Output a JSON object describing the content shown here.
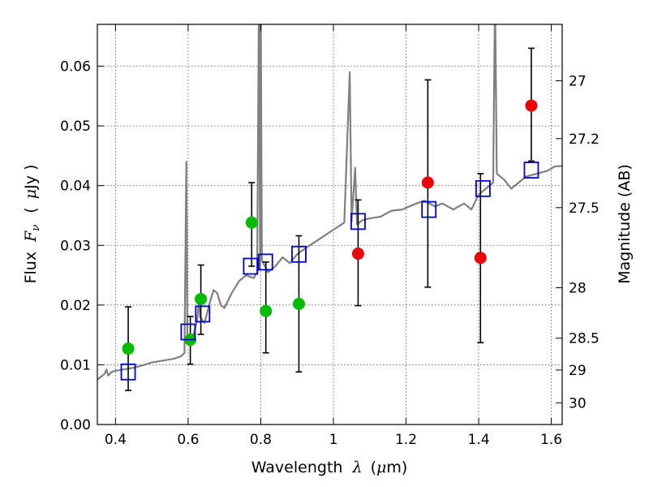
{
  "chart_data": {
    "type": "scatter",
    "xlabel": "Wavelength",
    "xlabel_symbol": "λ",
    "xlabel_unit_open": "(",
    "xlabel_unit_mu": "μ",
    "xlabel_unit_rest": "m)",
    "ylabel": "Flux",
    "ylabel_symbol_main": "F",
    "ylabel_symbol_sub": "ν",
    "ylabel_unit_open": "(",
    "ylabel_unit_mu": "μ",
    "ylabel_unit_rest": "Jy )",
    "y2label": "Magnitude (AB)",
    "xlim": [
      0.35,
      1.63
    ],
    "ylim": [
      0.0,
      0.067
    ],
    "x_ticks": [
      0.4,
      0.6,
      0.8,
      1.0,
      1.2,
      1.4,
      1.6
    ],
    "x_tick_labels": [
      "0.4",
      "0.6",
      "0.8",
      "1",
      "1.2",
      "1.4",
      "1.6"
    ],
    "y_ticks": [
      0.0,
      0.01,
      0.02,
      0.03,
      0.04,
      0.05,
      0.06
    ],
    "y_tick_labels": [
      "0.00",
      "0.01",
      "0.02",
      "0.03",
      "0.04",
      "0.05",
      "0.06"
    ],
    "y2_ticks": [
      27,
      27.2,
      27.5,
      28,
      28.5,
      29,
      30
    ],
    "y2_tick_labels": [
      "27",
      "27.2",
      "27.5",
      "28",
      "28.5",
      "29",
      "30"
    ],
    "grid": true,
    "colors": {
      "model": "#808080",
      "green": "#00bb00",
      "red": "#ee0000",
      "box": "#0000cc",
      "errorbar": "#000000"
    },
    "series": [
      {
        "marker": "circle",
        "color": "#00bb00",
        "points": [
          {
            "x": 0.435,
            "y": 0.0127
          },
          {
            "x": 0.606,
            "y": 0.0142
          },
          {
            "x": 0.635,
            "y": 0.021
          },
          {
            "x": 0.775,
            "y": 0.0338
          },
          {
            "x": 0.814,
            "y": 0.019
          },
          {
            "x": 0.905,
            "y": 0.0202
          }
        ]
      },
      {
        "marker": "circle",
        "color": "#ee0000",
        "points": [
          {
            "x": 1.068,
            "y": 0.0286
          },
          {
            "x": 1.26,
            "y": 0.0405
          },
          {
            "x": 1.405,
            "y": 0.0279
          },
          {
            "x": 1.545,
            "y": 0.0534
          }
        ]
      },
      {
        "marker": "open-square",
        "color": "#0000cc",
        "points": [
          {
            "x": 0.435,
            "y": 0.0088
          },
          {
            "x": 0.6,
            "y": 0.0155
          },
          {
            "x": 0.64,
            "y": 0.0185
          },
          {
            "x": 0.772,
            "y": 0.0265
          },
          {
            "x": 0.813,
            "y": 0.0272
          },
          {
            "x": 0.905,
            "y": 0.0285
          },
          {
            "x": 1.068,
            "y": 0.034
          },
          {
            "x": 1.263,
            "y": 0.036
          },
          {
            "x": 1.412,
            "y": 0.0395
          },
          {
            "x": 1.545,
            "y": 0.0426
          }
        ]
      }
    ],
    "errorbars": [
      {
        "x": 0.435,
        "ylow": 0.0057,
        "yhigh": 0.0197
      },
      {
        "x": 0.606,
        "ylow": 0.0101,
        "yhigh": 0.0181
      },
      {
        "x": 0.635,
        "ylow": 0.0151,
        "yhigh": 0.0267
      },
      {
        "x": 0.775,
        "ylow": 0.0265,
        "yhigh": 0.0405
      },
      {
        "x": 0.814,
        "ylow": 0.012,
        "yhigh": 0.0272
      },
      {
        "x": 0.905,
        "ylow": 0.0088,
        "yhigh": 0.0316
      },
      {
        "x": 1.068,
        "ylow": 0.0199,
        "yhigh": 0.0376
      },
      {
        "x": 1.26,
        "ylow": 0.023,
        "yhigh": 0.0577
      },
      {
        "x": 1.405,
        "ylow": 0.0137,
        "yhigh": 0.042
      },
      {
        "x": 1.545,
        "ylow": 0.0441,
        "yhigh": 0.063
      }
    ],
    "model_spectrum": [
      [
        0.35,
        0.0075
      ],
      [
        0.36,
        0.008
      ],
      [
        0.37,
        0.0085
      ],
      [
        0.375,
        0.0092
      ],
      [
        0.38,
        0.0082
      ],
      [
        0.39,
        0.0088
      ],
      [
        0.4,
        0.009
      ],
      [
        0.42,
        0.0092
      ],
      [
        0.45,
        0.0095
      ],
      [
        0.48,
        0.01
      ],
      [
        0.5,
        0.0104
      ],
      [
        0.53,
        0.0107
      ],
      [
        0.56,
        0.011
      ],
      [
        0.58,
        0.0114
      ],
      [
        0.59,
        0.012
      ],
      [
        0.595,
        0.044
      ],
      [
        0.598,
        0.0135
      ],
      [
        0.61,
        0.0138
      ],
      [
        0.625,
        0.0175
      ],
      [
        0.63,
        0.021
      ],
      [
        0.633,
        0.018
      ],
      [
        0.645,
        0.017
      ],
      [
        0.66,
        0.0205
      ],
      [
        0.67,
        0.0225
      ],
      [
        0.68,
        0.022
      ],
      [
        0.69,
        0.02
      ],
      [
        0.7,
        0.0195
      ],
      [
        0.72,
        0.022
      ],
      [
        0.74,
        0.024
      ],
      [
        0.76,
        0.025
      ],
      [
        0.78,
        0.0245
      ],
      [
        0.79,
        0.0255
      ],
      [
        0.795,
        0.072
      ],
      [
        0.798,
        0.026
      ],
      [
        0.8,
        0.072
      ],
      [
        0.803,
        0.0275
      ],
      [
        0.82,
        0.0255
      ],
      [
        0.84,
        0.0265
      ],
      [
        0.86,
        0.028
      ],
      [
        0.88,
        0.027
      ],
      [
        0.9,
        0.0285
      ],
      [
        0.93,
        0.0298
      ],
      [
        0.96,
        0.031
      ],
      [
        0.98,
        0.0318
      ],
      [
        1.0,
        0.0326
      ],
      [
        1.03,
        0.0338
      ],
      [
        1.045,
        0.059
      ],
      [
        1.05,
        0.034
      ],
      [
        1.06,
        0.043
      ],
      [
        1.065,
        0.0335
      ],
      [
        1.08,
        0.0342
      ],
      [
        1.1,
        0.0345
      ],
      [
        1.13,
        0.0348
      ],
      [
        1.16,
        0.0358
      ],
      [
        1.19,
        0.036
      ],
      [
        1.22,
        0.0368
      ],
      [
        1.25,
        0.0375
      ],
      [
        1.28,
        0.0365
      ],
      [
        1.3,
        0.037
      ],
      [
        1.33,
        0.036
      ],
      [
        1.36,
        0.037
      ],
      [
        1.38,
        0.036
      ],
      [
        1.4,
        0.0385
      ],
      [
        1.42,
        0.0395
      ],
      [
        1.44,
        0.0405
      ],
      [
        1.445,
        0.072
      ],
      [
        1.45,
        0.042
      ],
      [
        1.47,
        0.041
      ],
      [
        1.49,
        0.0395
      ],
      [
        1.51,
        0.0405
      ],
      [
        1.53,
        0.0415
      ],
      [
        1.56,
        0.042
      ],
      [
        1.59,
        0.0425
      ],
      [
        1.61,
        0.0432
      ],
      [
        1.63,
        0.0433
      ]
    ]
  }
}
